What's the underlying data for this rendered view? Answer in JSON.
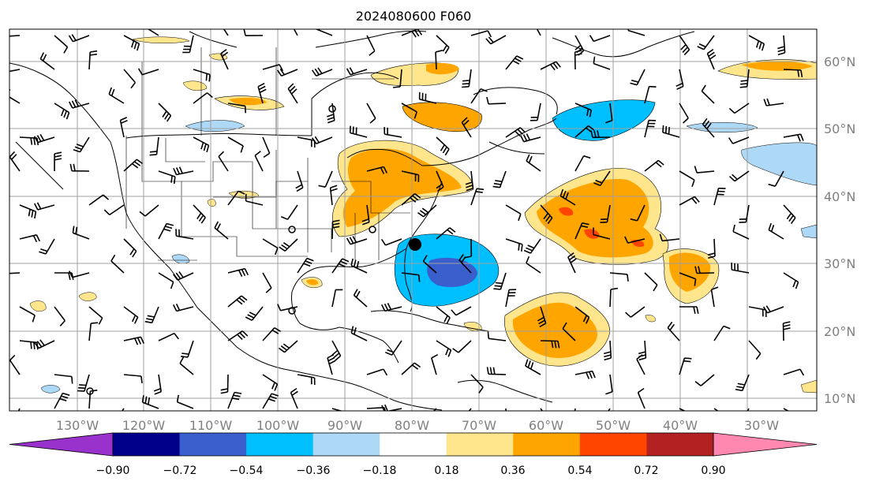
{
  "title": "2024080600 F060",
  "lat_labels": [
    "60°N",
    "50°N",
    "40°N",
    "30°N",
    "20°N",
    "10°N"
  ],
  "lon_labels": [
    "130°W",
    "120°W",
    "110°W",
    "100°W",
    "90°W",
    "80°W",
    "70°W",
    "60°W",
    "50°W",
    "40°W",
    "30°W"
  ],
  "colorbar": {
    "ticks": [
      "−0.90",
      "−0.72",
      "−0.54",
      "−0.36",
      "−0.18",
      "0.18",
      "0.36",
      "0.54",
      "0.72",
      "0.90"
    ],
    "colors": [
      "#9932cc",
      "#00008b",
      "#3a5fcd",
      "#00bfff",
      "#add8f6",
      "#ffffff",
      "#ffe68c",
      "#ffa500",
      "#ff4500",
      "#b22222",
      "#ff88b0"
    ]
  }
}
